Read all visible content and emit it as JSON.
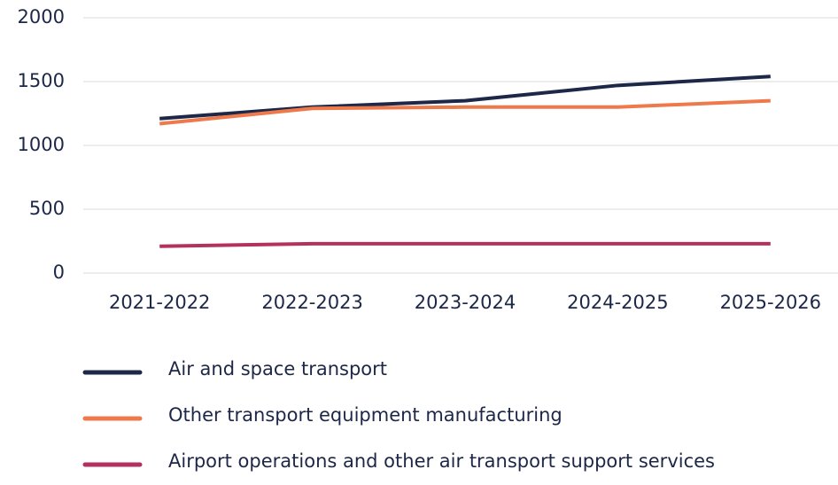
{
  "chart_data": {
    "type": "line",
    "categories": [
      "2021-2022",
      "2022-2023",
      "2023-2024",
      "2024-2025",
      "2025-2026"
    ],
    "series": [
      {
        "name": "Air and space transport",
        "color": "#1d2747",
        "values": [
          1210,
          1300,
          1350,
          1470,
          1540
        ]
      },
      {
        "name": "Other transport equipment manufacturing",
        "color": "#ee7a4c",
        "values": [
          1170,
          1290,
          1300,
          1300,
          1350
        ]
      },
      {
        "name": "Airport operations and other air transport support services",
        "color": "#b3315f",
        "values": [
          210,
          230,
          230,
          230,
          230
        ]
      }
    ],
    "ylim": [
      0,
      2000
    ],
    "yticks": [
      0,
      500,
      1000,
      1500,
      2000
    ],
    "grid": true,
    "legend": "bottom"
  }
}
